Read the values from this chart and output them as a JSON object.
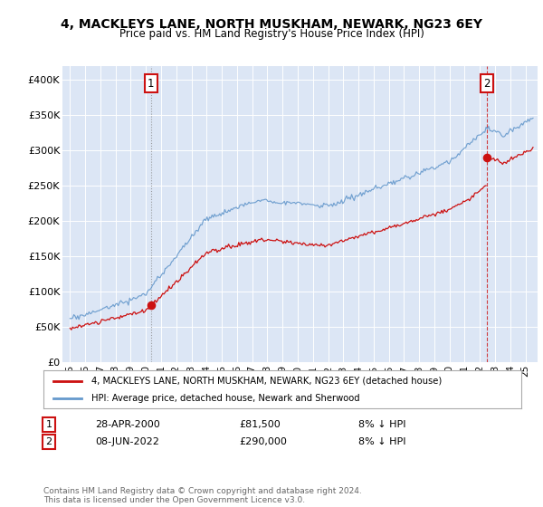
{
  "title": "4, MACKLEYS LANE, NORTH MUSKHAM, NEWARK, NG23 6EY",
  "subtitle": "Price paid vs. HM Land Registry's House Price Index (HPI)",
  "ylim": [
    0,
    420000
  ],
  "yticks": [
    0,
    50000,
    100000,
    150000,
    200000,
    250000,
    300000,
    350000,
    400000
  ],
  "ytick_labels": [
    "£0",
    "£50K",
    "£100K",
    "£150K",
    "£200K",
    "£250K",
    "£300K",
    "£350K",
    "£400K"
  ],
  "plot_bg_color": "#dce6f5",
  "hpi_color": "#6699cc",
  "price_color": "#cc1111",
  "sale1_t": 2000.333,
  "sale1_price": 81500,
  "sale2_t": 2022.458,
  "sale2_price": 290000,
  "legend_line1": "4, MACKLEYS LANE, NORTH MUSKHAM, NEWARK, NG23 6EY (detached house)",
  "legend_line2": "HPI: Average price, detached house, Newark and Sherwood",
  "marker1_date_str": "28-APR-2000",
  "marker1_price_str": "£81,500",
  "marker1_note": "8% ↓ HPI",
  "marker2_date_str": "08-JUN-2022",
  "marker2_price_str": "£290,000",
  "marker2_note": "8% ↓ HPI",
  "footer": "Contains HM Land Registry data © Crown copyright and database right 2024.\nThis data is licensed under the Open Government Licence v3.0.",
  "xtick_years": [
    "95",
    "96",
    "97",
    "98",
    "99",
    "00",
    "01",
    "02",
    "03",
    "04",
    "05",
    "06",
    "07",
    "08",
    "09",
    "10",
    "11",
    "12",
    "13",
    "14",
    "15",
    "16",
    "17",
    "18",
    "19",
    "20",
    "21",
    "22",
    "23",
    "24",
    "25"
  ],
  "xtick_positions": [
    1995,
    1996,
    1997,
    1998,
    1999,
    2000,
    2001,
    2002,
    2003,
    2004,
    2005,
    2006,
    2007,
    2008,
    2009,
    2010,
    2011,
    2012,
    2013,
    2014,
    2015,
    2016,
    2017,
    2018,
    2019,
    2020,
    2021,
    2022,
    2023,
    2024,
    2025
  ]
}
